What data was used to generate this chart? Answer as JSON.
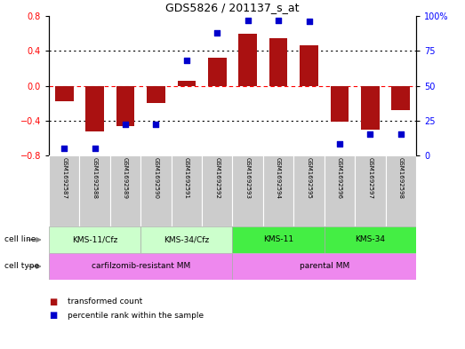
{
  "title": "GDS5826 / 201137_s_at",
  "samples": [
    "GSM1692587",
    "GSM1692588",
    "GSM1692589",
    "GSM1692590",
    "GSM1692591",
    "GSM1692592",
    "GSM1692593",
    "GSM1692594",
    "GSM1692595",
    "GSM1692596",
    "GSM1692597",
    "GSM1692598"
  ],
  "transformed_count": [
    -0.18,
    -0.52,
    -0.46,
    -0.2,
    0.06,
    0.32,
    0.6,
    0.55,
    0.46,
    -0.41,
    -0.5,
    -0.28
  ],
  "percentile_rank": [
    5,
    5,
    22,
    22,
    68,
    88,
    97,
    97,
    96,
    8,
    15,
    15
  ],
  "cell_line_groups": [
    {
      "label": "KMS-11/Cfz",
      "start": 0,
      "end": 3,
      "color": "#ccffcc"
    },
    {
      "label": "KMS-34/Cfz",
      "start": 3,
      "end": 6,
      "color": "#ccffcc"
    },
    {
      "label": "KMS-11",
      "start": 6,
      "end": 9,
      "color": "#44ee44"
    },
    {
      "label": "KMS-34",
      "start": 9,
      "end": 12,
      "color": "#44ee44"
    }
  ],
  "cell_type_groups": [
    {
      "label": "carfilzomib-resistant MM",
      "start": 0,
      "end": 6,
      "color": "#ee88ee"
    },
    {
      "label": "parental MM",
      "start": 6,
      "end": 12,
      "color": "#ee88ee"
    }
  ],
  "bar_color": "#aa1111",
  "dot_color": "#0000cc",
  "ylim_left": [
    -0.8,
    0.8
  ],
  "ylim_right": [
    0,
    100
  ],
  "yticks_left": [
    -0.8,
    -0.4,
    0.0,
    0.4,
    0.8
  ],
  "yticks_right": [
    0,
    25,
    50,
    75,
    100
  ],
  "ytick_labels_right": [
    "0",
    "25",
    "50",
    "75",
    "100%"
  ],
  "hlines": [
    -0.4,
    0.0,
    0.4
  ],
  "hline_styles": [
    "dotted",
    "dashed",
    "dotted"
  ],
  "hline_colors": [
    "black",
    "red",
    "black"
  ],
  "legend_items": [
    {
      "label": "transformed count",
      "color": "#aa1111"
    },
    {
      "label": "percentile rank within the sample",
      "color": "#0000cc"
    }
  ],
  "sample_bg_color": "#cccccc",
  "arrow_color": "#888888"
}
